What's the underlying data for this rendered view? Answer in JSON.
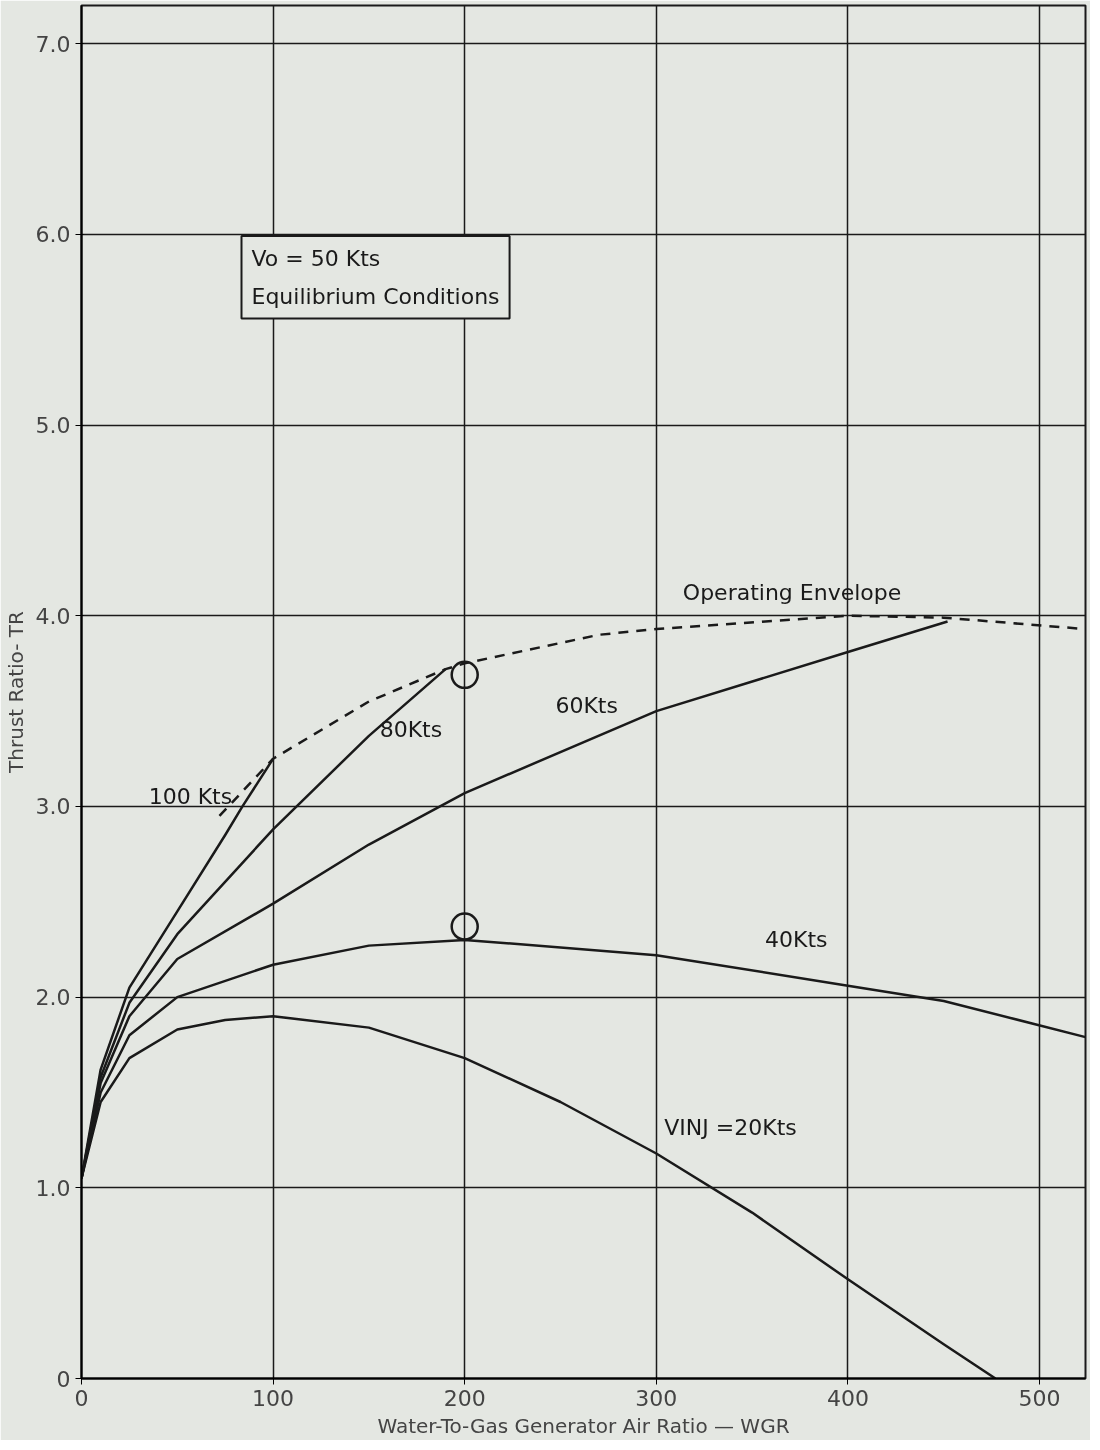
{
  "chart_data": {
    "type": "line",
    "xlabel": "Water-To-Gas Generator Air Ratio — WGR",
    "ylabel": "Thrust Ratio- TR",
    "xlim": [
      0,
      524
    ],
    "ylim": [
      0,
      7.2
    ],
    "xticks": [
      0,
      100,
      200,
      300,
      400,
      500
    ],
    "yticks": [
      0,
      {
        "value": 1,
        "label": "1.0"
      },
      {
        "value": 2,
        "label": "2.0"
      },
      {
        "value": 3,
        "label": "3.0"
      },
      {
        "value": 4,
        "label": "4.0"
      },
      {
        "value": 5,
        "label": "5.0"
      },
      {
        "value": 6,
        "label": "6.0"
      },
      {
        "value": 7,
        "label": "7.0"
      }
    ],
    "grid": true,
    "marker": "none",
    "line_style": "solid",
    "series": [
      {
        "name": "VINJ =20Kts",
        "color": "#1a1a1a",
        "x": [
          0,
          10,
          25,
          50,
          75,
          100,
          150,
          200,
          250,
          300,
          350,
          400,
          450,
          477
        ],
        "values": [
          1.05,
          1.45,
          1.68,
          1.83,
          1.88,
          1.9,
          1.84,
          1.68,
          1.45,
          1.18,
          0.87,
          0.52,
          0.18,
          0
        ]
      },
      {
        "name": "40Kts",
        "color": "#1a1a1a",
        "x": [
          0,
          10,
          25,
          50,
          100,
          150,
          200,
          300,
          400,
          450,
          524
        ],
        "values": [
          1.05,
          1.5,
          1.8,
          2.0,
          2.17,
          2.27,
          2.3,
          2.22,
          2.06,
          1.98,
          1.79
        ]
      },
      {
        "name": "60Kts",
        "color": "#1a1a1a",
        "x": [
          0,
          10,
          25,
          50,
          100,
          150,
          200,
          300,
          400,
          452
        ],
        "values": [
          1.05,
          1.55,
          1.9,
          2.2,
          2.49,
          2.8,
          3.07,
          3.5,
          3.81,
          3.97
        ]
      },
      {
        "name": "80Kts",
        "color": "#1a1a1a",
        "x": [
          0,
          10,
          25,
          50,
          100,
          150,
          190
        ],
        "values": [
          1.05,
          1.58,
          1.97,
          2.33,
          2.88,
          3.37,
          3.72
        ]
      },
      {
        "name": "100 Kts",
        "color": "#1a1a1a",
        "x": [
          0,
          10,
          25,
          50,
          75,
          84,
          100
        ],
        "values": [
          1.05,
          1.62,
          2.05,
          2.45,
          2.85,
          3.0,
          3.25
        ]
      },
      {
        "name": "Operating Envelope",
        "color": "#1a1a1a",
        "line_style": "dashed",
        "x": [
          72,
          100,
          150,
          190,
          200,
          270,
          300,
          400,
          450,
          524
        ],
        "values": [
          2.95,
          3.25,
          3.55,
          3.72,
          3.75,
          3.9,
          3.93,
          4.0,
          3.99,
          3.93
        ]
      },
      {
        "type": "scatter",
        "marker": "circle",
        "color": "#1a1a1a",
        "x": [
          200,
          200
        ],
        "values": [
          3.69,
          2.37
        ]
      }
    ],
    "annotations": [
      "Vo = 50 Kts",
      "Equilibrium Conditions"
    ]
  }
}
